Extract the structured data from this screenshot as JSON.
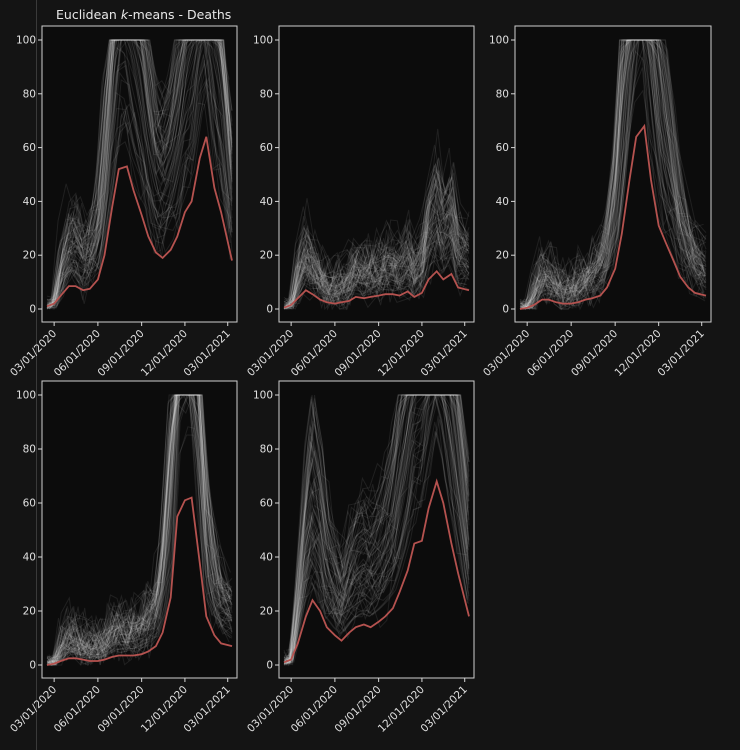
{
  "title_prefix": "Euclidean ",
  "title_italic": "k",
  "title_suffix": "-means - Deaths",
  "colors": {
    "background": "#141414",
    "panel_background": "#0c0c0c",
    "member_series": "#f2f2f2",
    "centroid": "#b5524f"
  },
  "chart_data": [
    {
      "type": "line",
      "ylim": [
        0,
        100
      ],
      "yticks": [
        0,
        20,
        40,
        60,
        80,
        100
      ],
      "xticks": [
        "03/01/2020",
        "06/01/2020",
        "09/01/2020",
        "12/01/2020",
        "03/01/2021"
      ],
      "xlim": [
        "02/15/2020",
        "03/10/2021"
      ],
      "series": [
        {
          "role": "centroid",
          "x": [
            "02/15/2020",
            "03/01/2020",
            "03/15/2020",
            "04/01/2020",
            "04/15/2020",
            "05/01/2020",
            "05/15/2020",
            "06/01/2020",
            "06/15/2020",
            "07/01/2020",
            "07/15/2020",
            "08/01/2020",
            "08/15/2020",
            "09/01/2020",
            "09/15/2020",
            "10/01/2020",
            "10/15/2020",
            "11/01/2020",
            "11/15/2020",
            "12/01/2020",
            "12/15/2020",
            "01/01/2021",
            "01/15/2021",
            "02/01/2021",
            "02/15/2021",
            "03/10/2021"
          ],
          "y": [
            1,
            2,
            5,
            8.5,
            8.5,
            7,
            7.5,
            11,
            20,
            38,
            52,
            53,
            44,
            35,
            27,
            21,
            19,
            22,
            27,
            36,
            40,
            56,
            64,
            45,
            36,
            18
          ]
        }
      ]
    },
    {
      "type": "line",
      "ylim": [
        0,
        100
      ],
      "yticks": [
        0,
        20,
        40,
        60,
        80,
        100
      ],
      "xticks": [
        "03/01/2020",
        "06/01/2020",
        "09/01/2020",
        "12/01/2020",
        "03/01/2021"
      ],
      "xlim": [
        "02/15/2020",
        "03/10/2021"
      ],
      "series": [
        {
          "role": "centroid",
          "x": [
            "02/15/2020",
            "03/01/2020",
            "03/15/2020",
            "04/01/2020",
            "04/15/2020",
            "05/01/2020",
            "05/15/2020",
            "06/01/2020",
            "06/15/2020",
            "07/01/2020",
            "07/15/2020",
            "08/01/2020",
            "08/15/2020",
            "09/01/2020",
            "09/15/2020",
            "10/01/2020",
            "10/15/2020",
            "11/01/2020",
            "11/15/2020",
            "12/01/2020",
            "12/15/2020",
            "01/01/2021",
            "01/15/2021",
            "02/01/2021",
            "02/15/2021",
            "03/10/2021"
          ],
          "y": [
            0.5,
            1.5,
            4,
            7,
            5.5,
            3.5,
            2.5,
            2,
            2.5,
            3,
            4.5,
            4,
            4.5,
            5,
            5.5,
            5.5,
            5,
            6.5,
            4.5,
            6,
            11,
            14,
            11,
            13,
            8,
            7
          ]
        }
      ]
    },
    {
      "type": "line",
      "ylim": [
        0,
        100
      ],
      "yticks": [
        0,
        20,
        40,
        60,
        80,
        100
      ],
      "xticks": [
        "03/01/2020",
        "06/01/2020",
        "09/01/2020",
        "12/01/2020",
        "03/01/2021"
      ],
      "xlim": [
        "02/15/2020",
        "03/10/2021"
      ],
      "series": [
        {
          "role": "centroid",
          "x": [
            "02/15/2020",
            "03/01/2020",
            "03/15/2020",
            "04/01/2020",
            "04/15/2020",
            "05/01/2020",
            "05/15/2020",
            "06/01/2020",
            "06/15/2020",
            "07/01/2020",
            "07/15/2020",
            "08/01/2020",
            "08/15/2020",
            "09/01/2020",
            "09/15/2020",
            "10/01/2020",
            "10/15/2020",
            "11/01/2020",
            "11/15/2020",
            "12/01/2020",
            "12/15/2020",
            "01/01/2021",
            "01/15/2021",
            "02/01/2021",
            "02/15/2021",
            "03/10/2021"
          ],
          "y": [
            0,
            0.5,
            1.5,
            3.5,
            3.5,
            2.5,
            2,
            2,
            2.5,
            3.5,
            4,
            5,
            8,
            15,
            28,
            48,
            64,
            68,
            48,
            31,
            25,
            18,
            12,
            8,
            6,
            5
          ]
        }
      ]
    },
    {
      "type": "line",
      "ylim": [
        0,
        100
      ],
      "yticks": [
        0,
        20,
        40,
        60,
        80,
        100
      ],
      "xticks": [
        "03/01/2020",
        "06/01/2020",
        "09/01/2020",
        "12/01/2020",
        "03/01/2021"
      ],
      "xlim": [
        "02/15/2020",
        "03/10/2021"
      ],
      "series": [
        {
          "role": "centroid",
          "x": [
            "02/15/2020",
            "03/01/2020",
            "03/15/2020",
            "04/01/2020",
            "04/15/2020",
            "05/01/2020",
            "05/15/2020",
            "06/01/2020",
            "06/15/2020",
            "07/01/2020",
            "07/15/2020",
            "08/01/2020",
            "08/15/2020",
            "09/01/2020",
            "09/15/2020",
            "10/01/2020",
            "10/15/2020",
            "11/01/2020",
            "11/15/2020",
            "12/01/2020",
            "12/15/2020",
            "01/01/2021",
            "01/15/2021",
            "02/01/2021",
            "02/15/2021",
            "03/10/2021"
          ],
          "y": [
            0,
            0.5,
            1.5,
            2.5,
            2.5,
            2,
            1.5,
            1.5,
            2,
            3,
            3.5,
            3.5,
            3.5,
            4,
            5,
            7,
            12,
            25,
            55,
            61,
            62,
            38,
            18,
            11,
            8,
            7
          ]
        }
      ]
    },
    {
      "type": "line",
      "ylim": [
        0,
        100
      ],
      "yticks": [
        0,
        20,
        40,
        60,
        80,
        100
      ],
      "xticks": [
        "03/01/2020",
        "06/01/2020",
        "09/01/2020",
        "12/01/2020",
        "03/01/2021"
      ],
      "xlim": [
        "02/15/2020",
        "03/10/2021"
      ],
      "series": [
        {
          "role": "centroid",
          "x": [
            "02/15/2020",
            "03/01/2020",
            "03/15/2020",
            "04/01/2020",
            "04/15/2020",
            "05/01/2020",
            "05/15/2020",
            "06/01/2020",
            "06/15/2020",
            "07/01/2020",
            "07/15/2020",
            "08/01/2020",
            "08/15/2020",
            "09/01/2020",
            "09/15/2020",
            "10/01/2020",
            "10/15/2020",
            "11/01/2020",
            "11/15/2020",
            "12/01/2020",
            "12/15/2020",
            "01/01/2021",
            "01/15/2021",
            "02/01/2021",
            "02/15/2021",
            "03/10/2021"
          ],
          "y": [
            1,
            2,
            8,
            18,
            24,
            20,
            14,
            11,
            9,
            12,
            14,
            15,
            14,
            16,
            18,
            21,
            27,
            35,
            45,
            46,
            58,
            68,
            60,
            45,
            34,
            18
          ]
        }
      ]
    }
  ]
}
